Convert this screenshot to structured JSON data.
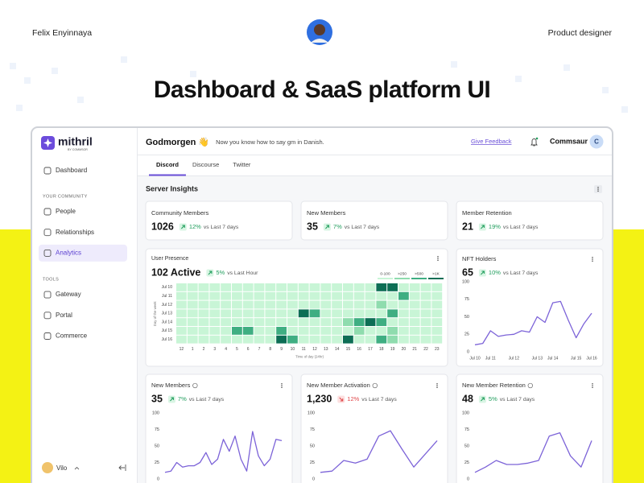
{
  "header": {
    "author": "Felix Enyinnaya",
    "role": "Product designer",
    "title": "Dashboard & SaaS platform UI"
  },
  "sidebar": {
    "brand": "mithril",
    "tagline": "BY COMMSOR",
    "home": "Dashboard",
    "sections": [
      {
        "label": "YOUR COMMUNITY",
        "items": [
          {
            "label": "People"
          },
          {
            "label": "Relationships"
          },
          {
            "label": "Analytics",
            "active": true
          }
        ]
      },
      {
        "label": "TOOLS",
        "items": [
          {
            "label": "Gateway"
          },
          {
            "label": "Portal"
          },
          {
            "label": "Commerce"
          }
        ]
      }
    ],
    "user": "Vilo"
  },
  "topbar": {
    "greeting": "Godmorgen 👋",
    "message": "Now you know how to say gm in Danish.",
    "feedback": "Give Feedback",
    "account": "Commsaur",
    "account_initial": "C"
  },
  "tabs": [
    {
      "label": "Discord",
      "active": true
    },
    {
      "label": "Discourse"
    },
    {
      "label": "Twitter"
    }
  ],
  "section_title": "Server Insights",
  "stats": [
    {
      "label": "Community Members",
      "value": "1026",
      "change": "12%",
      "trend": "up",
      "compare": "vs Last 7 days"
    },
    {
      "label": "New Members",
      "value": "35",
      "change": "7%",
      "trend": "up",
      "compare": "vs Last 7 days"
    },
    {
      "label": "Member Retention",
      "value": "21",
      "change": "19%",
      "trend": "up",
      "compare": "vs Last 7 days"
    }
  ],
  "presence": {
    "title": "User Presence",
    "value": "102 Active",
    "change": "5%",
    "trend": "up",
    "compare": "vs Last Hour",
    "legend": [
      {
        "label": "0-100",
        "color": "#c8f5d6"
      },
      {
        "label": ">250",
        "color": "#8fdcae"
      },
      {
        "label": ">500",
        "color": "#3fae82"
      },
      {
        "label": ">1K",
        "color": "#0d6e55"
      }
    ],
    "rows": [
      "Jul 10",
      "Jul 11",
      "Jul 12",
      "Jul 13",
      "Jul 14",
      "Jul 15",
      "Jul 16"
    ],
    "columns": [
      12,
      1,
      2,
      3,
      4,
      5,
      6,
      7,
      8,
      9,
      10,
      11,
      12,
      13,
      14,
      15,
      16,
      17,
      18,
      19,
      20,
      21,
      22,
      23
    ],
    "y_label": "Day of the week",
    "x_label": "Time of day (24hr)",
    "cells": [
      [
        0,
        0,
        0,
        0,
        0,
        0,
        0,
        0,
        0,
        0,
        0,
        0,
        0,
        0,
        0,
        0,
        0,
        0,
        3,
        3,
        0,
        0,
        0,
        0
      ],
      [
        0,
        0,
        0,
        0,
        0,
        0,
        0,
        0,
        0,
        0,
        0,
        0,
        0,
        0,
        0,
        0,
        0,
        0,
        0,
        0,
        2,
        0,
        0,
        0
      ],
      [
        0,
        0,
        0,
        0,
        0,
        0,
        0,
        0,
        0,
        0,
        0,
        0,
        0,
        0,
        0,
        0,
        0,
        0,
        1,
        0,
        0,
        0,
        0,
        0
      ],
      [
        0,
        0,
        0,
        0,
        0,
        0,
        0,
        0,
        0,
        0,
        0,
        3,
        2,
        0,
        0,
        0,
        0,
        0,
        0,
        2,
        0,
        0,
        0,
        0
      ],
      [
        0,
        0,
        0,
        0,
        0,
        0,
        0,
        0,
        0,
        0,
        0,
        0,
        0,
        0,
        0,
        1,
        2,
        3,
        2,
        0,
        0,
        0,
        0,
        0
      ],
      [
        0,
        0,
        0,
        0,
        0,
        2,
        2,
        0,
        0,
        2,
        0,
        0,
        0,
        0,
        0,
        0,
        1,
        0,
        0,
        1,
        0,
        0,
        0,
        0
      ],
      [
        0,
        0,
        0,
        0,
        0,
        0,
        0,
        0,
        0,
        3,
        2,
        0,
        0,
        0,
        0,
        3,
        0,
        0,
        2,
        1,
        0,
        0,
        0,
        0
      ]
    ]
  },
  "charts": [
    {
      "type": "line",
      "title": "NFT Holders",
      "value": "65",
      "change": "10%",
      "trend": "up",
      "compare": "vs Last 7 days",
      "color": "#7c63d8",
      "categories": [
        "Jul 10",
        null,
        "Jul 11",
        null,
        null,
        "Jul 12",
        null,
        null,
        "Jul 13",
        null,
        "Jul 14",
        null,
        null,
        "Jul 15",
        null,
        "Jul 16"
      ],
      "values": [
        10,
        12,
        30,
        22,
        24,
        25,
        30,
        28,
        50,
        42,
        70,
        72,
        45,
        20,
        40,
        55
      ],
      "ylim": [
        0,
        100
      ],
      "yticks": [
        0,
        25,
        50,
        75,
        100
      ]
    },
    {
      "type": "line",
      "title": "New Members",
      "value": "35",
      "change": "7%",
      "trend": "up",
      "compare": "vs Last 7 days",
      "color": "#7c63d8",
      "values": [
        10,
        12,
        25,
        18,
        20,
        20,
        25,
        40,
        22,
        30,
        60,
        42,
        65,
        30,
        12,
        72,
        35,
        20,
        30,
        60,
        58
      ],
      "ylim": [
        0,
        100
      ],
      "yticks": [
        0,
        25,
        50,
        75,
        100
      ]
    },
    {
      "type": "line",
      "title": "New Member Activation",
      "value": "1,230",
      "change": "12%",
      "trend": "down",
      "compare": "vs Last 7 days",
      "color": "#7c63d8",
      "values": [
        10,
        12,
        28,
        24,
        30,
        65,
        73,
        45,
        18,
        38,
        58
      ],
      "ylim": [
        0,
        100
      ],
      "yticks": [
        0,
        25,
        50,
        75,
        100
      ]
    },
    {
      "type": "line",
      "title": "New Member Retention",
      "value": "48",
      "change": "5%",
      "trend": "up",
      "compare": "vs Last 7 days",
      "color": "#7c63d8",
      "values": [
        10,
        18,
        28,
        22,
        22,
        24,
        28,
        65,
        70,
        35,
        18,
        58
      ],
      "ylim": [
        0,
        100
      ],
      "yticks": [
        0,
        25,
        50,
        75,
        100
      ]
    }
  ]
}
